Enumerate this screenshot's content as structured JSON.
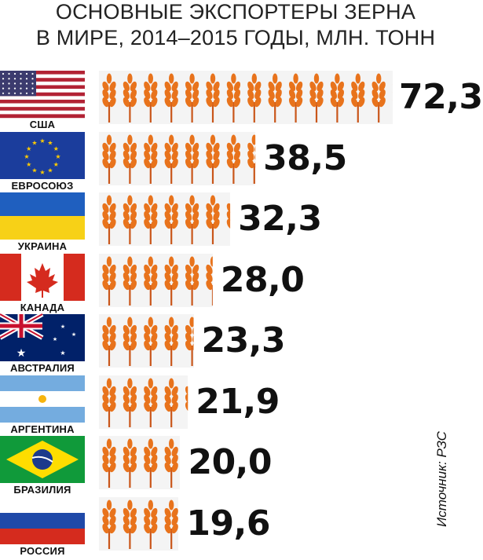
{
  "title": {
    "line1": "ОСНОВНЫЕ ЭКСПОРТЕРЫ ЗЕРНА",
    "line2": "В МИРЕ, 2014–2015 ГОДЫ, МЛН. ТОНН"
  },
  "source": "Источник: РЗС",
  "colors": {
    "wheat": "#e8731c",
    "wheat_dark": "#c9561a",
    "bar_background": "#f4f4f4"
  },
  "chart_data": {
    "type": "bar",
    "orientation": "horizontal",
    "title": "ОСНОВНЫЕ ЭКСПОРТЕРЫ ЗЕРНА В МИРЕ, 2014–2015 ГОДЫ, МЛН. ТОНН",
    "categories": [
      "США",
      "ЕВРОСОЮЗ",
      "УКРАИНА",
      "КАНАДА",
      "АВСТРАЛИЯ",
      "АРГЕНТИНА",
      "БРАЗИЛИЯ",
      "РОССИЯ"
    ],
    "values": [
      72.3,
      38.5,
      32.3,
      28.0,
      23.3,
      21.9,
      20.0,
      19.6
    ],
    "value_labels": [
      "72,3",
      "38,5",
      "32,3",
      "28,0",
      "23,3",
      "21,9",
      "20,0",
      "19,6"
    ],
    "flags": [
      "flag-usa-icon",
      "flag-eu-icon",
      "flag-ukraine-icon",
      "flag-canada-icon",
      "flag-australia-icon",
      "flag-argentina-icon",
      "flag-brazil-icon",
      "flag-russia-icon"
    ],
    "unit": "млн. тонн",
    "mark": "wheat-ear-icon"
  }
}
